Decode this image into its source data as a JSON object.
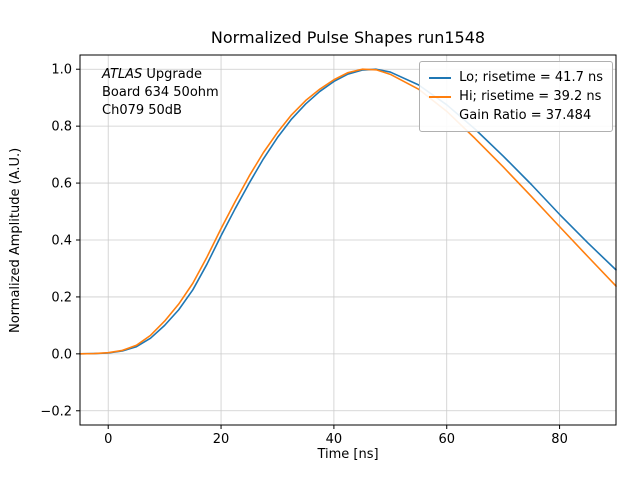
{
  "title": "Normalized Pulse Shapes run1548",
  "annotation": {
    "line1_italic": "ATLAS",
    "line1_rest": " Upgrade",
    "line2": "Board 634 50ohm",
    "line3": "Ch079 50dB"
  },
  "legend": {
    "entries": [
      {
        "label": "Lo; risetime = 41.7 ns",
        "color": "#1f77b4"
      },
      {
        "label": "Hi; risetime = 39.2 ns",
        "color": "#ff7f0e"
      },
      {
        "label": "Gain Ratio = 37.484",
        "color": null
      }
    ]
  },
  "chart_data": {
    "type": "line",
    "title": "Normalized Pulse Shapes run1548",
    "xlabel": "Time [ns]",
    "ylabel": "Normalized Amplitude (A.U.)",
    "xlim": [
      -5,
      90
    ],
    "ylim": [
      -0.25,
      1.05
    ],
    "xticks": [
      0,
      20,
      40,
      60,
      80
    ],
    "yticks": [
      -0.2,
      0.0,
      0.2,
      0.4,
      0.6,
      0.8,
      1.0
    ],
    "grid": true,
    "legend_position": "upper right",
    "legend_extra": "Gain Ratio = 37.484",
    "series": [
      {
        "name": "Lo; risetime = 41.7 ns",
        "color": "#1f77b4",
        "x": [
          -5,
          -2.5,
          0,
          2.5,
          5,
          7.5,
          10,
          12.5,
          15,
          17.5,
          20,
          22.5,
          25,
          27.5,
          30,
          32.5,
          35,
          37.5,
          40,
          42.5,
          45,
          47.5,
          50,
          55,
          60,
          65,
          70,
          75,
          80,
          85,
          90
        ],
        "y": [
          0.0,
          0.001,
          0.003,
          0.01,
          0.025,
          0.055,
          0.1,
          0.155,
          0.225,
          0.315,
          0.415,
          0.51,
          0.6,
          0.685,
          0.76,
          0.825,
          0.878,
          0.922,
          0.957,
          0.983,
          0.997,
          1.0,
          0.99,
          0.945,
          0.875,
          0.79,
          0.695,
          0.595,
          0.49,
          0.39,
          0.295
        ]
      },
      {
        "name": "Hi; risetime = 39.2 ns",
        "color": "#ff7f0e",
        "x": [
          -5,
          -2.5,
          0,
          2.5,
          5,
          7.5,
          10,
          12.5,
          15,
          17.5,
          20,
          22.5,
          25,
          27.5,
          30,
          32.5,
          35,
          37.5,
          40,
          42.5,
          45,
          47.5,
          50,
          55,
          60,
          65,
          70,
          75,
          80,
          85,
          90
        ],
        "y": [
          0.0,
          0.001,
          0.004,
          0.012,
          0.03,
          0.065,
          0.115,
          0.175,
          0.248,
          0.34,
          0.44,
          0.535,
          0.625,
          0.707,
          0.778,
          0.84,
          0.89,
          0.93,
          0.963,
          0.988,
          1.0,
          0.998,
          0.982,
          0.93,
          0.852,
          0.757,
          0.657,
          0.553,
          0.447,
          0.342,
          0.238
        ]
      }
    ]
  }
}
